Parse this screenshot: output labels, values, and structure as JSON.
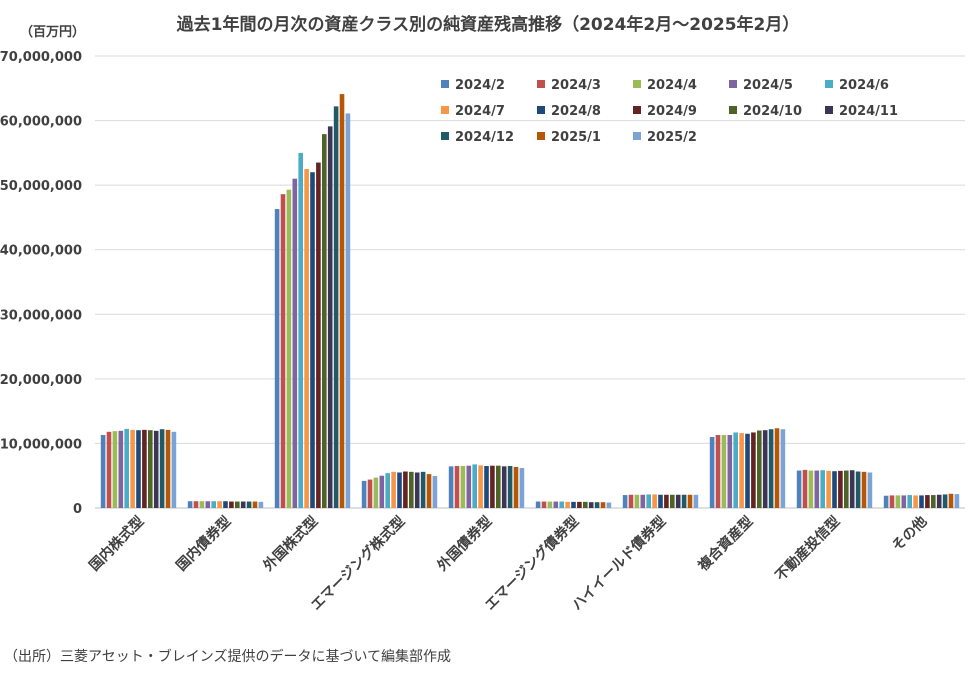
{
  "chart_data": {
    "type": "bar",
    "title": "過去1年間の月次の資産クラス別の純資産残高推移（2024年2月～2025年2月）",
    "unit_label": "（百万円）",
    "ylim": [
      0,
      70000000
    ],
    "yticks": [
      "0",
      "10,000,000",
      "20,000,000",
      "30,000,000",
      "40,000,000",
      "50,000,000",
      "60,000,000",
      "70,000,000"
    ],
    "grid": true,
    "legend_position": "top-right",
    "categories": [
      "国内株式型",
      "国内債券型",
      "外国株式型",
      "エマージング株式型",
      "外国債券型",
      "エマージング債券型",
      "ハイイールド債券型",
      "複合資産型",
      "不動産投信型",
      "その他"
    ],
    "series": [
      {
        "name": "2024/2",
        "color": "#4F81BD",
        "values": [
          11300000,
          1050000,
          46300000,
          4200000,
          6450000,
          1000000,
          2000000,
          11000000,
          5800000,
          1900000
        ]
      },
      {
        "name": "2024/3",
        "color": "#C0504D",
        "values": [
          11800000,
          1050000,
          48600000,
          4400000,
          6500000,
          1000000,
          2050000,
          11300000,
          5900000,
          1950000
        ]
      },
      {
        "name": "2024/4",
        "color": "#9BBB59",
        "values": [
          11900000,
          1050000,
          49300000,
          4700000,
          6500000,
          1000000,
          2050000,
          11300000,
          5800000,
          1950000
        ]
      },
      {
        "name": "2024/5",
        "color": "#8064A2",
        "values": [
          11950000,
          1050000,
          51000000,
          5000000,
          6550000,
          1000000,
          2050000,
          11300000,
          5800000,
          1950000
        ]
      },
      {
        "name": "2024/6",
        "color": "#4BACC6",
        "values": [
          12250000,
          1050000,
          55000000,
          5400000,
          6750000,
          1000000,
          2100000,
          11700000,
          5850000,
          2000000
        ]
      },
      {
        "name": "2024/7",
        "color": "#F79646",
        "values": [
          12100000,
          1050000,
          52500000,
          5600000,
          6600000,
          950000,
          2100000,
          11600000,
          5750000,
          1950000
        ]
      },
      {
        "name": "2024/8",
        "color": "#1F497D",
        "values": [
          12050000,
          1050000,
          52000000,
          5500000,
          6500000,
          950000,
          2050000,
          11500000,
          5700000,
          1950000
        ]
      },
      {
        "name": "2024/9",
        "color": "#632423",
        "values": [
          12100000,
          1000000,
          53500000,
          5650000,
          6550000,
          950000,
          2050000,
          11700000,
          5750000,
          2000000
        ]
      },
      {
        "name": "2024/10",
        "color": "#4F6228",
        "values": [
          12050000,
          1000000,
          57900000,
          5600000,
          6550000,
          950000,
          2050000,
          12000000,
          5800000,
          2000000
        ]
      },
      {
        "name": "2024/11",
        "color": "#3C3555",
        "values": [
          11950000,
          1000000,
          59100000,
          5500000,
          6450000,
          900000,
          2050000,
          12050000,
          5850000,
          2050000
        ]
      },
      {
        "name": "2024/12",
        "color": "#215968",
        "values": [
          12200000,
          1000000,
          62200000,
          5600000,
          6500000,
          900000,
          2050000,
          12200000,
          5650000,
          2100000
        ]
      },
      {
        "name": "2025/1",
        "color": "#B65708",
        "values": [
          12100000,
          1000000,
          64100000,
          5250000,
          6350000,
          900000,
          2050000,
          12350000,
          5600000,
          2200000
        ]
      },
      {
        "name": "2025/2",
        "color": "#7BA3D6",
        "values": [
          11800000,
          950000,
          61100000,
          4950000,
          6200000,
          850000,
          2050000,
          12200000,
          5500000,
          2150000
        ]
      }
    ]
  },
  "source_note": "（出所）三菱アセット・ブレインズ提供のデータに基づいて編集部作成"
}
